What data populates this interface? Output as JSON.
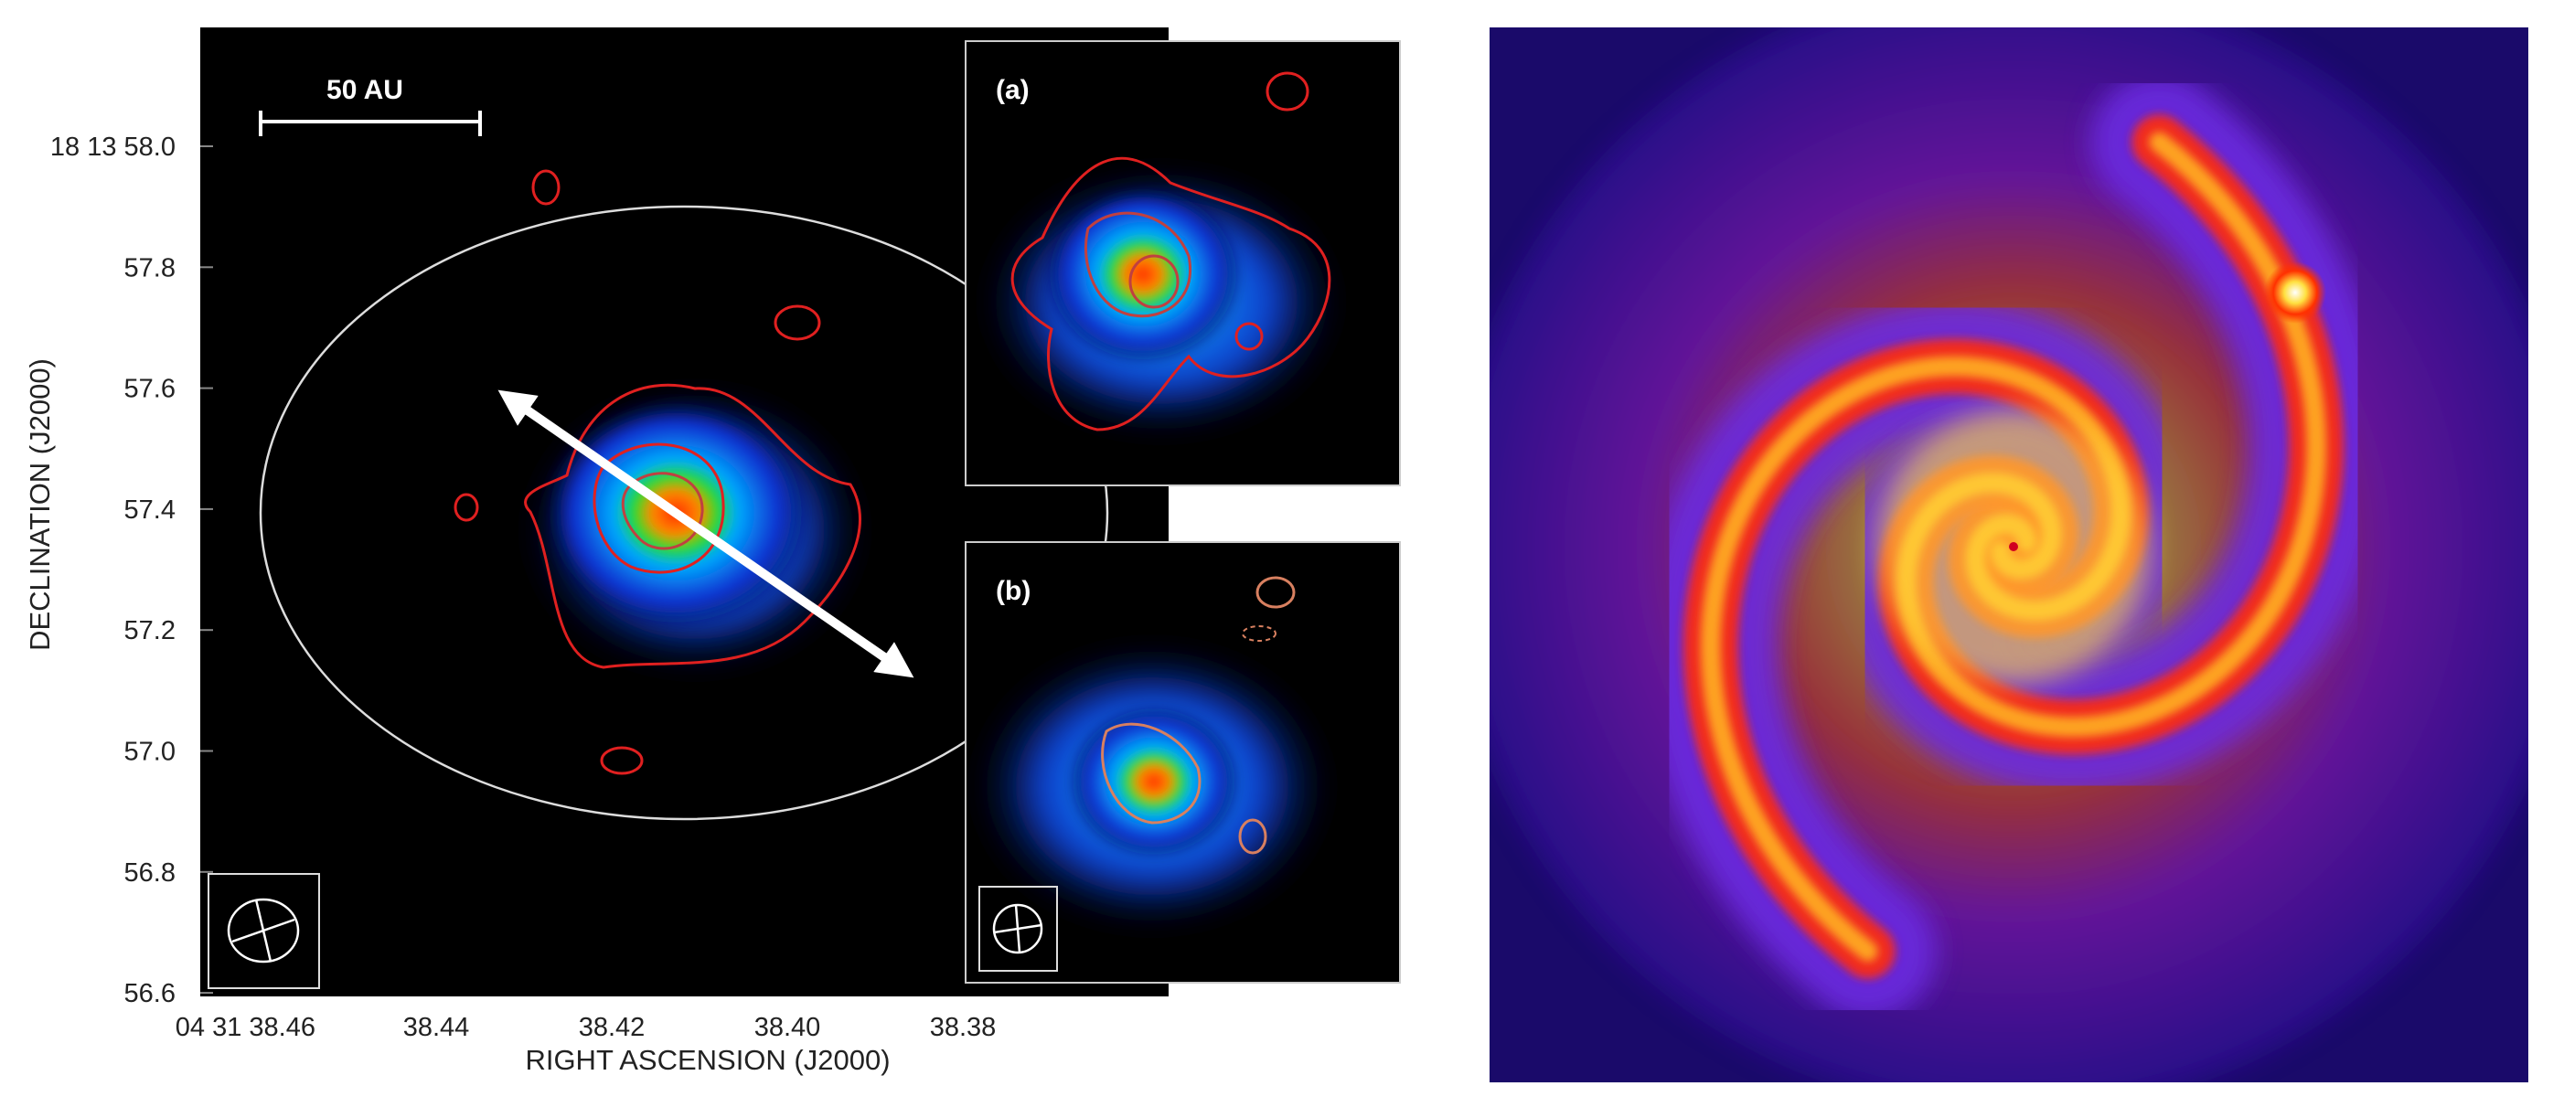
{
  "left_panel": {
    "scale_bar": "50 AU",
    "y_axis": {
      "label": "DECLINATION (J2000)",
      "ticks": [
        "18 13 58.0",
        "57.8",
        "57.6",
        "57.4",
        "57.2",
        "57.0",
        "56.8",
        "56.6"
      ]
    },
    "x_axis": {
      "label": "RIGHT ASCENSION (J2000)",
      "ticks": [
        "04 31 38.46",
        "38.44",
        "38.42",
        "38.40",
        "38.38"
      ]
    }
  },
  "insets": [
    {
      "label": "(a)"
    },
    {
      "label": "(b)"
    }
  ]
}
